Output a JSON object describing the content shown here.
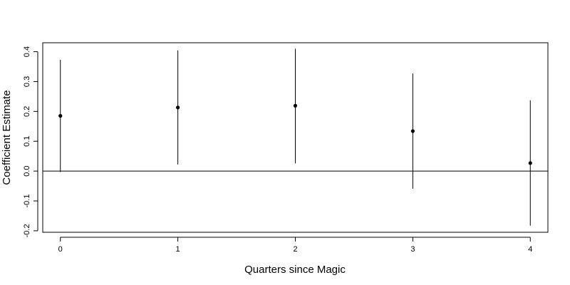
{
  "chart_data": {
    "type": "scatter",
    "title": "",
    "xlabel": "Quarters since Magic",
    "ylabel": "Coefficient Estimate",
    "xlim": [
      -0.15,
      4.15
    ],
    "ylim": [
      -0.205,
      0.43
    ],
    "x_ticks": [
      "0",
      "1",
      "2",
      "3",
      "4"
    ],
    "y_ticks": [
      "-0.2",
      "-0.1",
      "0.0",
      "0.1",
      "0.2",
      "0.3",
      "0.4"
    ],
    "reference_line_y": 0,
    "grid": false,
    "points": [
      {
        "x": 0,
        "estimate": 0.185,
        "lower": -0.003,
        "upper": 0.373
      },
      {
        "x": 1,
        "estimate": 0.213,
        "lower": 0.022,
        "upper": 0.404
      },
      {
        "x": 2,
        "estimate": 0.219,
        "lower": 0.026,
        "upper": 0.41
      },
      {
        "x": 3,
        "estimate": 0.134,
        "lower": -0.059,
        "upper": 0.327
      },
      {
        "x": 4,
        "estimate": 0.027,
        "lower": -0.183,
        "upper": 0.237
      }
    ],
    "colors": {
      "marks": "#000000",
      "axis": "#000000"
    }
  }
}
